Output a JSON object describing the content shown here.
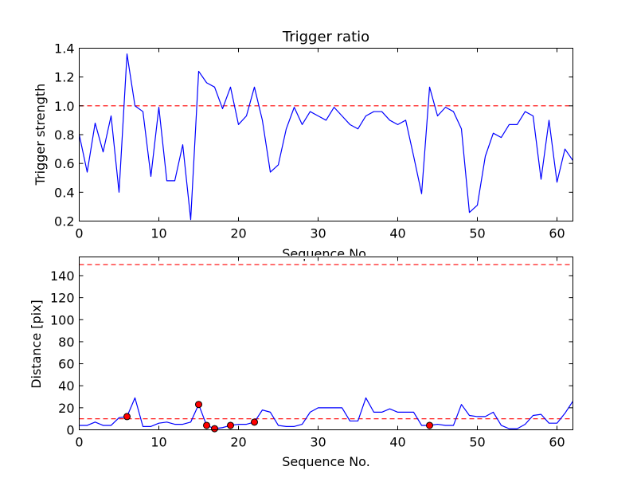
{
  "chart_data": [
    {
      "type": "line",
      "title": "Trigger ratio",
      "xlabel": "Sequence No.",
      "ylabel": "Trigger strength",
      "xlim": [
        0,
        62
      ],
      "ylim": [
        0.2,
        1.4
      ],
      "xticks": [
        "0",
        "10",
        "20",
        "30",
        "40",
        "50",
        "60"
      ],
      "yticks": [
        "0.2",
        "0.4",
        "0.6",
        "0.8",
        "1.0",
        "1.2",
        "1.4"
      ],
      "series": [
        {
          "color": "#0000ff",
          "style": "solid",
          "x": [
            0,
            1,
            2,
            3,
            4,
            5,
            6,
            7,
            8,
            9,
            10,
            11,
            12,
            13,
            14,
            15,
            16,
            17,
            18,
            19,
            20,
            21,
            22,
            23,
            24,
            25,
            26,
            27,
            28,
            29,
            30,
            31,
            32,
            33,
            34,
            35,
            36,
            37,
            38,
            39,
            40,
            41,
            42,
            43,
            44,
            45,
            46,
            47,
            48,
            49,
            50,
            51,
            52,
            53,
            54,
            55,
            56,
            57,
            58,
            59,
            60,
            61,
            62
          ],
          "values": [
            0.8,
            0.54,
            0.88,
            0.68,
            0.93,
            0.4,
            1.36,
            1.0,
            0.96,
            0.51,
            0.99,
            0.48,
            0.48,
            0.73,
            0.21,
            1.24,
            1.16,
            1.13,
            0.98,
            1.13,
            0.87,
            0.93,
            1.13,
            0.9,
            0.54,
            0.59,
            0.84,
            0.99,
            0.87,
            0.96,
            0.93,
            0.9,
            0.99,
            0.93,
            0.87,
            0.84,
            0.93,
            0.96,
            0.96,
            0.9,
            0.87,
            0.9,
            0.65,
            0.39,
            1.13,
            0.93,
            0.99,
            0.96,
            0.84,
            0.26,
            0.31,
            0.65,
            0.81,
            0.78,
            0.87,
            0.87,
            0.96,
            0.93,
            0.49,
            0.9,
            0.47,
            0.7,
            0.62
          ]
        }
      ],
      "reference_lines": [
        {
          "y": 1.0,
          "color": "#ff0000",
          "style": "dashed"
        }
      ],
      "grid": false
    },
    {
      "type": "line",
      "title": "",
      "xlabel": "Sequence No.",
      "ylabel": "Distance [pix]",
      "xlim": [
        0,
        62
      ],
      "ylim": [
        0,
        157
      ],
      "xticks": [
        "0",
        "10",
        "20",
        "30",
        "40",
        "50",
        "60"
      ],
      "yticks": [
        "0",
        "20",
        "40",
        "60",
        "80",
        "100",
        "120",
        "140"
      ],
      "series": [
        {
          "color": "#0000ff",
          "style": "solid",
          "x": [
            0,
            1,
            2,
            3,
            4,
            5,
            6,
            7,
            8,
            9,
            10,
            11,
            12,
            13,
            14,
            15,
            16,
            17,
            18,
            19,
            20,
            21,
            22,
            23,
            24,
            25,
            26,
            27,
            28,
            29,
            30,
            31,
            32,
            33,
            34,
            35,
            36,
            37,
            38,
            39,
            40,
            41,
            42,
            43,
            44,
            45,
            46,
            47,
            48,
            49,
            50,
            51,
            52,
            53,
            54,
            55,
            56,
            57,
            58,
            59,
            60,
            61,
            62
          ],
          "values": [
            4,
            4,
            7,
            4,
            4,
            11,
            12,
            29,
            3,
            3,
            6,
            7,
            5,
            5,
            7,
            23,
            4,
            1,
            2,
            4,
            5,
            5,
            7,
            18,
            16,
            4,
            3,
            3,
            5,
            16,
            20,
            20,
            20,
            20,
            8,
            8,
            29,
            16,
            16,
            19,
            16,
            16,
            16,
            4,
            4,
            5,
            4,
            4,
            23,
            13,
            12,
            12,
            16,
            4,
            1,
            1,
            5,
            13,
            14,
            6,
            6,
            15,
            26
          ]
        },
        {
          "name": "",
          "type": "scatter",
          "color": "#ff0000",
          "marker": "circle",
          "x": [
            6,
            15,
            16,
            17,
            19,
            22,
            44
          ],
          "values": [
            12,
            23,
            4,
            1,
            4,
            7,
            4
          ]
        }
      ],
      "reference_lines": [
        {
          "y": 10,
          "color": "#ff0000",
          "style": "dashed"
        },
        {
          "y": 150,
          "color": "#ff0000",
          "style": "dashed"
        }
      ],
      "grid": false
    }
  ]
}
